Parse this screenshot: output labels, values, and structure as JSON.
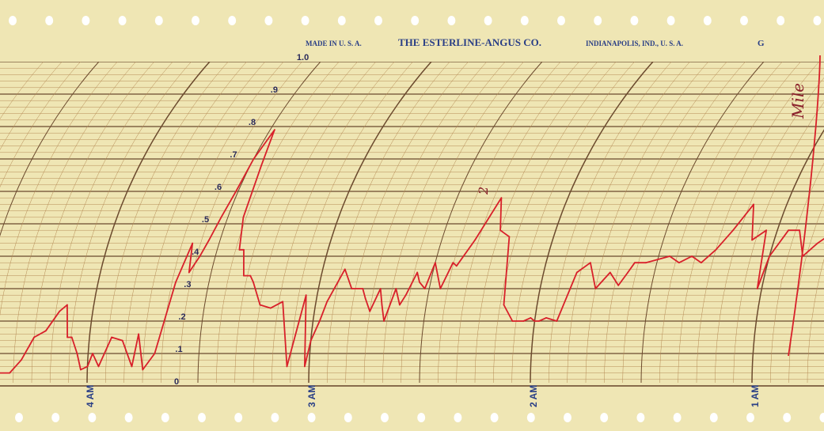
{
  "header": {
    "made_in": "MADE IN U. S. A.",
    "company": "THE ESTERLINE-ANGUS CO.",
    "location": "INDIANAPOLIS, IND., U. S. A.",
    "chart_code": "G"
  },
  "handwritten": {
    "top_right": "Mile",
    "middle_mark": "2"
  },
  "colors": {
    "paper": "#efe6b4",
    "grid_minor": "#b58a55",
    "grid_major": "#6b4a2e",
    "trace": "#d8202a",
    "print": "#2a3f86"
  },
  "chart_data": {
    "type": "line",
    "title": "",
    "xlabel": "",
    "ylabel": "",
    "ylim": [
      0,
      1.0
    ],
    "ytick_labels": [
      "0",
      ".1",
      ".2",
      ".3",
      ".4",
      ".5",
      ".6",
      ".7",
      ".8",
      ".9",
      "1.0"
    ],
    "ytick_values": [
      0,
      0.1,
      0.2,
      0.3,
      0.4,
      0.5,
      0.6,
      0.7,
      0.8,
      0.9,
      1.0
    ],
    "x_direction": "time decreases left to right",
    "x_unit": "hours after midnight",
    "xlim": [
      4.45,
      0.6
    ],
    "time_labels": [
      {
        "text": "4 AM",
        "hour": 4
      },
      {
        "text": "3 AM",
        "hour": 3
      },
      {
        "text": "2 AM",
        "hour": 2
      },
      {
        "text": "1 AM",
        "hour": 1
      }
    ],
    "grid": true,
    "series": [
      {
        "x": [
          4.45,
          4.4,
          4.35,
          4.3,
          4.25,
          4.2,
          4.15,
          4.12,
          4.1,
          4.08,
          4.05,
          4.03,
          4.0,
          3.98,
          3.95,
          3.9,
          3.85,
          3.8,
          3.78,
          3.75,
          3.7,
          3.65,
          3.62,
          3.6,
          3.57,
          3.55,
          3.53,
          3.51,
          3.5,
          3.48,
          3.45,
          3.43,
          3.4,
          3.38,
          3.35,
          3.32,
          3.3,
          3.25,
          3.2,
          3.15,
          3.1,
          3.05,
          3.02,
          3.0,
          2.97,
          2.95,
          2.9,
          2.85,
          2.8,
          2.78,
          2.75,
          2.72,
          2.7,
          2.68,
          2.65,
          2.62,
          2.6,
          2.57,
          2.55,
          2.52,
          2.5,
          2.45,
          2.42,
          2.4,
          2.35,
          2.3,
          2.25,
          2.2,
          2.15,
          2.1,
          2.05,
          2.02,
          2.0,
          1.98,
          1.95,
          1.9,
          1.85,
          1.8,
          1.75,
          1.7,
          1.65,
          1.62,
          1.6,
          1.55,
          1.5,
          1.45,
          1.4,
          1.35,
          1.3,
          1.25,
          1.2,
          1.15,
          1.1,
          1.05,
          1.02,
          1.0,
          0.95,
          0.9,
          0.85,
          0.8,
          0.75,
          0.7,
          0.65,
          0.6
        ],
        "y": [
          0.03,
          0.04,
          0.04,
          0.08,
          0.15,
          0.17,
          0.23,
          0.25,
          0.15,
          0.15,
          0.1,
          0.05,
          0.06,
          0.1,
          0.06,
          0.15,
          0.14,
          0.06,
          0.16,
          0.05,
          0.1,
          0.32,
          0.44,
          0.35,
          0.4,
          0.45,
          0.52,
          0.6,
          0.7,
          0.79,
          0.68,
          0.52,
          0.42,
          0.42,
          0.34,
          0.34,
          0.32,
          0.25,
          0.24,
          0.26,
          0.06,
          0.28,
          0.06,
          0.14,
          0.2,
          0.26,
          0.36,
          0.3,
          0.3,
          0.27,
          0.23,
          0.3,
          0.25,
          0.2,
          0.3,
          0.25,
          0.28,
          0.35,
          0.32,
          0.3,
          0.38,
          0.3,
          0.38,
          0.37,
          0.45,
          0.58,
          0.48,
          0.46,
          0.25,
          0.2,
          0.2,
          0.21,
          0.2,
          0.2,
          0.21,
          0.2,
          0.35,
          0.38,
          0.3,
          0.35,
          0.31,
          0.35,
          0.38,
          0.38,
          0.39,
          0.4,
          0.38,
          0.4,
          0.38,
          0.42,
          0.48,
          0.56,
          0.45,
          0.48,
          0.3,
          0.4,
          0.48,
          0.48,
          0.4,
          0.44,
          0.47,
          0.48,
          0.38,
          0.45
        ]
      }
    ]
  }
}
